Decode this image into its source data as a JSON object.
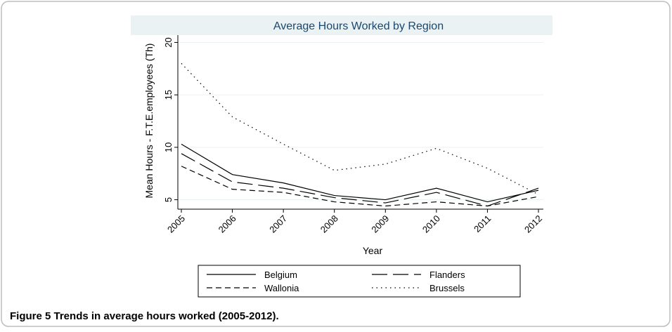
{
  "chart_data": {
    "type": "line",
    "title": "Average Hours Worked by Region",
    "xlabel": "Year",
    "ylabel": "Mean Hours - F.T.E.employees (Th)",
    "caption": "Figure 5 Trends in average hours worked (2005-2012).",
    "x": [
      2005,
      2006,
      2007,
      2008,
      2009,
      2010,
      2011,
      2012
    ],
    "xlim": [
      2005,
      2012
    ],
    "xticks": [
      2005,
      2006,
      2007,
      2008,
      2009,
      2010,
      2011,
      2012
    ],
    "ylim": [
      4.1,
      20.7
    ],
    "yticks": [
      5,
      10,
      15,
      20
    ],
    "grid": true,
    "legend": "bottom",
    "series": [
      {
        "name": "Belgium",
        "color": "#000000",
        "dash": "solid",
        "values": [
          10.3,
          7.4,
          6.6,
          5.4,
          5.0,
          6.1,
          4.8,
          5.9
        ]
      },
      {
        "name": "Flanders",
        "color": "#000000",
        "dash": "longdash",
        "values": [
          9.4,
          6.7,
          6.1,
          5.2,
          4.7,
          5.7,
          4.4,
          6.1
        ]
      },
      {
        "name": "Wallonia",
        "color": "#000000",
        "dash": "dash",
        "values": [
          8.2,
          6.0,
          5.7,
          4.8,
          4.4,
          4.8,
          4.4,
          5.3
        ]
      },
      {
        "name": "Brussels",
        "color": "#000000",
        "dash": "dot",
        "values": [
          18.0,
          12.9,
          10.3,
          7.8,
          8.4,
          9.9,
          8.0,
          5.5
        ]
      }
    ]
  }
}
